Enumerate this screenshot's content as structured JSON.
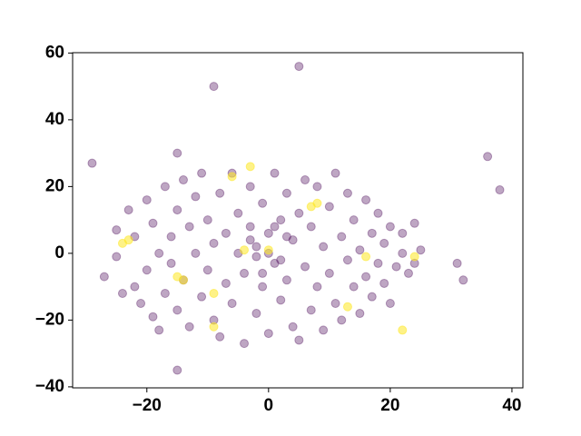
{
  "chart_data": {
    "type": "scatter",
    "xlim": [
      -32.2,
      41.8
    ],
    "ylim": [
      -40.3,
      60.1
    ],
    "xticks": [
      {
        "value": -20,
        "label": "−20"
      },
      0,
      20,
      40
    ],
    "yticks": [
      {
        "value": -40,
        "label": "−40"
      },
      {
        "value": -20,
        "label": "−20"
      },
      0,
      20,
      40,
      60
    ],
    "series": [
      {
        "color": "#440154",
        "opacity": 0.35,
        "x": [
          -27,
          -25,
          -25,
          -24,
          -23,
          -22,
          -22,
          -21,
          -20,
          -20,
          -19,
          -19,
          -18,
          -18,
          -17,
          -17,
          -16,
          -16,
          -15,
          -15,
          -14,
          -14,
          -13,
          -13,
          -12,
          -12,
          -11,
          -11,
          -10,
          -10,
          -9,
          -9,
          -8,
          -8,
          -7,
          -7,
          -6,
          -6,
          -5,
          -5,
          -4,
          -4,
          -3,
          -3,
          -2,
          -2,
          -1,
          -1,
          0,
          0,
          1,
          1,
          2,
          2,
          3,
          3,
          4,
          4,
          5,
          5,
          6,
          6,
          7,
          7,
          8,
          8,
          9,
          9,
          10,
          10,
          11,
          11,
          12,
          12,
          13,
          13,
          14,
          14,
          15,
          15,
          16,
          16,
          17,
          17,
          18,
          18,
          19,
          19,
          20,
          20,
          21,
          22,
          22,
          23,
          24,
          25,
          24,
          0,
          2,
          -2,
          3,
          -3,
          1,
          -1,
          5,
          -9,
          -29,
          -15,
          36,
          38,
          -15,
          31,
          32
        ],
        "y": [
          -7,
          7,
          -1,
          -12,
          13,
          -10,
          5,
          -15,
          -5,
          16,
          9,
          -19,
          0,
          -23,
          20,
          -12,
          5,
          -3,
          13,
          -17,
          22,
          -8,
          8,
          -22,
          0,
          17,
          -13,
          24,
          -5,
          10,
          -20,
          3,
          -25,
          18,
          -9,
          6,
          24,
          -15,
          0,
          12,
          -27,
          -6,
          20,
          8,
          -18,
          2,
          -10,
          15,
          6,
          -24,
          -3,
          24,
          10,
          -14,
          -8,
          18,
          4,
          -22,
          -26,
          12,
          -4,
          22,
          8,
          -17,
          -10,
          20,
          2,
          -23,
          -6,
          14,
          24,
          -15,
          5,
          -20,
          -2,
          18,
          -10,
          10,
          -18,
          1,
          16,
          -7,
          6,
          -13,
          -3,
          12,
          -9,
          3,
          -15,
          8,
          -4,
          0,
          6,
          -6,
          -3,
          1,
          9,
          0,
          -2,
          -1,
          5,
          4,
          8,
          -6,
          56,
          50,
          27,
          30,
          29,
          19,
          -35,
          -3,
          -8
        ]
      },
      {
        "color": "#fde725",
        "opacity": 0.55,
        "x": [
          -24,
          -23,
          -15,
          -14,
          -9,
          -9,
          -6,
          -3,
          -4,
          0,
          7,
          8,
          16,
          24,
          22,
          13
        ],
        "y": [
          3,
          4,
          -7,
          -8,
          -12,
          -22,
          23,
          26,
          1,
          1,
          14,
          15,
          -1,
          -1,
          -23,
          -16
        ]
      }
    ]
  }
}
